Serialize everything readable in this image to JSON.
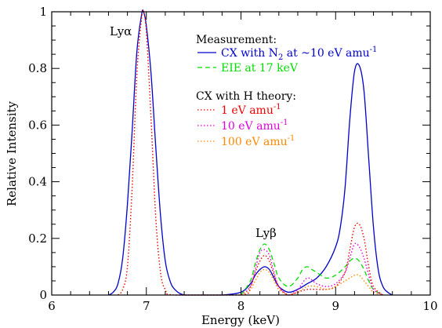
{
  "chart_data": {
    "type": "line",
    "xlabel": "Energy (keV)",
    "ylabel": "Relative Intensity",
    "xlim": [
      6,
      10
    ],
    "ylim": [
      0,
      1
    ],
    "x_ticks": [
      "6",
      "7",
      "8",
      "9",
      "10"
    ],
    "y_ticks": [
      "0",
      "0.2",
      "0.4",
      "0.6",
      "0.8",
      "1"
    ],
    "annotations": [
      {
        "text": "Lyα",
        "x": 6.9,
        "y": 0.93
      },
      {
        "text": "Lyβ",
        "x": 8.3,
        "y": 0.21
      }
    ],
    "legend": {
      "placement": "top-right",
      "group1_title": "Measurement:",
      "group2_title": "CX with H theory:"
    },
    "series": [
      {
        "name": "CX with N₂ at ~10 eV amu⁻¹",
        "color": "#0000cc",
        "dash": "solid",
        "x": [
          6.6,
          6.65,
          6.7,
          6.75,
          6.8,
          6.85,
          6.9,
          6.95,
          6.97,
          7.0,
          7.05,
          7.1,
          7.15,
          7.2,
          7.25,
          7.3,
          7.4,
          7.6,
          7.8,
          8.0,
          8.1,
          8.15,
          8.2,
          8.25,
          8.3,
          8.35,
          8.4,
          8.5,
          8.6,
          8.7,
          8.8,
          8.9,
          9.0,
          9.05,
          9.1,
          9.15,
          9.2,
          9.25,
          9.3,
          9.35,
          9.4,
          9.45,
          9.5,
          9.55,
          9.6
        ],
        "y": [
          0.0,
          0.01,
          0.04,
          0.13,
          0.32,
          0.58,
          0.86,
          0.99,
          1.0,
          0.95,
          0.78,
          0.52,
          0.28,
          0.12,
          0.05,
          0.02,
          0.0,
          0.0,
          0.0,
          0.01,
          0.04,
          0.07,
          0.09,
          0.1,
          0.09,
          0.06,
          0.03,
          0.01,
          0.02,
          0.04,
          0.06,
          0.1,
          0.17,
          0.24,
          0.38,
          0.62,
          0.79,
          0.81,
          0.72,
          0.48,
          0.24,
          0.09,
          0.03,
          0.01,
          0.0
        ]
      },
      {
        "name": "EIE at 17 keV",
        "color": "#00dd00",
        "dash": "dashed",
        "x": [
          8.0,
          8.1,
          8.15,
          8.2,
          8.25,
          8.3,
          8.35,
          8.4,
          8.5,
          8.6,
          8.65,
          8.7,
          8.75,
          8.8,
          8.9,
          9.0,
          9.1,
          9.15,
          9.2,
          9.25,
          9.3,
          9.35,
          9.4,
          9.5
        ],
        "y": [
          0.0,
          0.05,
          0.11,
          0.16,
          0.18,
          0.16,
          0.11,
          0.06,
          0.03,
          0.06,
          0.09,
          0.1,
          0.09,
          0.08,
          0.06,
          0.07,
          0.1,
          0.12,
          0.13,
          0.12,
          0.09,
          0.05,
          0.02,
          0.0
        ]
      },
      {
        "name": "1 eV amu⁻¹",
        "color": "#ee0000",
        "dash": "dotted",
        "x": [
          6.7,
          6.75,
          6.8,
          6.85,
          6.9,
          6.95,
          6.97,
          7.0,
          7.05,
          7.1,
          7.15,
          7.2,
          7.3,
          8.0,
          8.1,
          8.15,
          8.2,
          8.25,
          8.3,
          8.35,
          8.4,
          8.5,
          8.6,
          8.7,
          8.8,
          8.9,
          9.0,
          9.1,
          9.15,
          9.2,
          9.25,
          9.3,
          9.35,
          9.4,
          9.5
        ],
        "y": [
          0.0,
          0.02,
          0.1,
          0.38,
          0.78,
          0.98,
          1.0,
          0.93,
          0.62,
          0.27,
          0.08,
          0.02,
          0.0,
          0.0,
          0.03,
          0.08,
          0.12,
          0.14,
          0.12,
          0.07,
          0.03,
          0.0,
          0.01,
          0.02,
          0.02,
          0.02,
          0.03,
          0.08,
          0.16,
          0.24,
          0.25,
          0.2,
          0.1,
          0.03,
          0.0
        ]
      },
      {
        "name": "10 eV amu⁻¹",
        "color": "#dd00dd",
        "dash": "dotted",
        "x": [
          8.0,
          8.1,
          8.15,
          8.2,
          8.25,
          8.3,
          8.35,
          8.4,
          8.5,
          8.6,
          8.7,
          8.8,
          8.9,
          9.0,
          9.1,
          9.15,
          9.2,
          9.25,
          9.3,
          9.35,
          9.4,
          9.5
        ],
        "y": [
          0.0,
          0.03,
          0.09,
          0.15,
          0.16,
          0.14,
          0.08,
          0.03,
          0.0,
          0.02,
          0.06,
          0.04,
          0.03,
          0.04,
          0.08,
          0.13,
          0.18,
          0.17,
          0.13,
          0.07,
          0.02,
          0.0
        ]
      },
      {
        "name": "100 eV amu⁻¹",
        "color": "#ff8800",
        "dash": "dotted",
        "x": [
          8.0,
          8.1,
          8.15,
          8.2,
          8.25,
          8.3,
          8.35,
          8.4,
          8.5,
          8.6,
          8.7,
          8.8,
          8.9,
          9.0,
          9.1,
          9.15,
          9.2,
          9.25,
          9.3,
          9.35,
          9.4,
          9.5
        ],
        "y": [
          0.0,
          0.02,
          0.05,
          0.08,
          0.09,
          0.08,
          0.05,
          0.02,
          0.0,
          0.01,
          0.03,
          0.03,
          0.02,
          0.03,
          0.05,
          0.06,
          0.07,
          0.07,
          0.05,
          0.03,
          0.01,
          0.0
        ]
      }
    ]
  }
}
